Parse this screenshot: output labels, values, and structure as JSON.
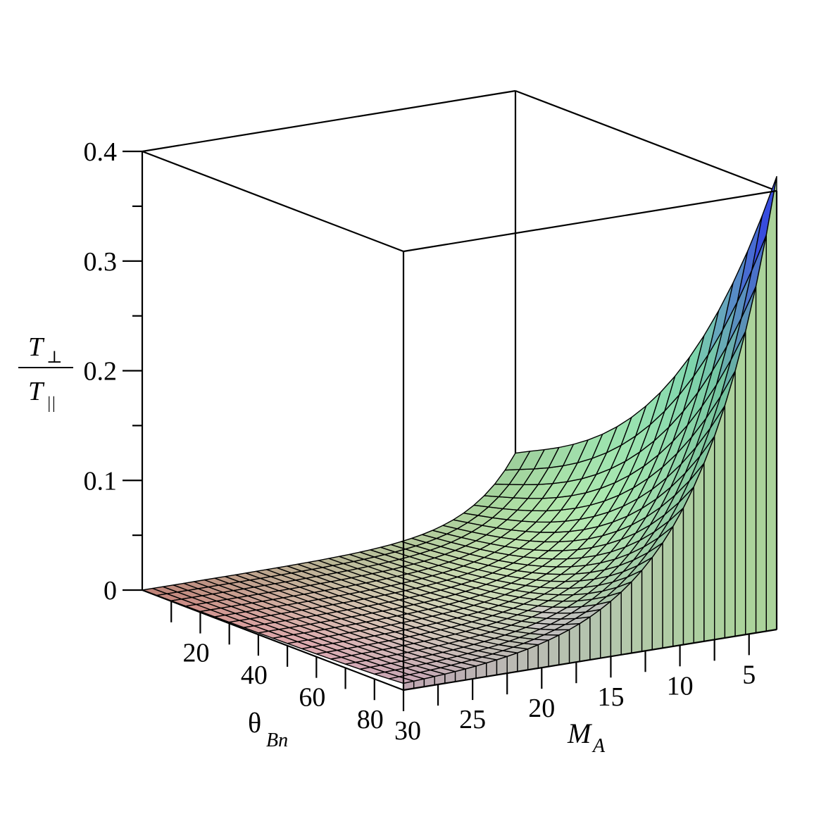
{
  "chart_data": {
    "type": "surface3d",
    "x_axis": {
      "label": "M",
      "label_sub": "A",
      "range": [
        3,
        30
      ],
      "ticks": [
        "5",
        "10",
        "15",
        "20",
        "25",
        "30"
      ]
    },
    "y_axis": {
      "label": "θ",
      "label_sub": "Bn",
      "range": [
        0,
        90
      ],
      "ticks": [
        "20",
        "40",
        "60",
        "80"
      ]
    },
    "z_axis": {
      "label_num": "T",
      "label_num_sub": "⊥",
      "label_den": "T",
      "label_den_sub": "||",
      "range": [
        0,
        0.4
      ],
      "ticks": [
        "0",
        "0.1",
        "0.2",
        "0.3",
        "0.4"
      ]
    },
    "surface": {
      "description_of_shape": "peak near low M_A and high θ_Bn, decaying toward higher M_A and lower θ_Bn",
      "peak_value": 0.41,
      "corner_values": {
        "low_MA_low_theta": 0.155,
        "low_MA_high_theta": 0.41,
        "high_MA_low_theta": 0.0,
        "high_MA_high_theta": 0.005
      }
    },
    "colors": {
      "high": "#3a4cff",
      "mid_high": "#7fd8b0",
      "mid": "#c9f3b0",
      "low_pink": "#e8c8e8",
      "low": "#d07a5a"
    }
  }
}
